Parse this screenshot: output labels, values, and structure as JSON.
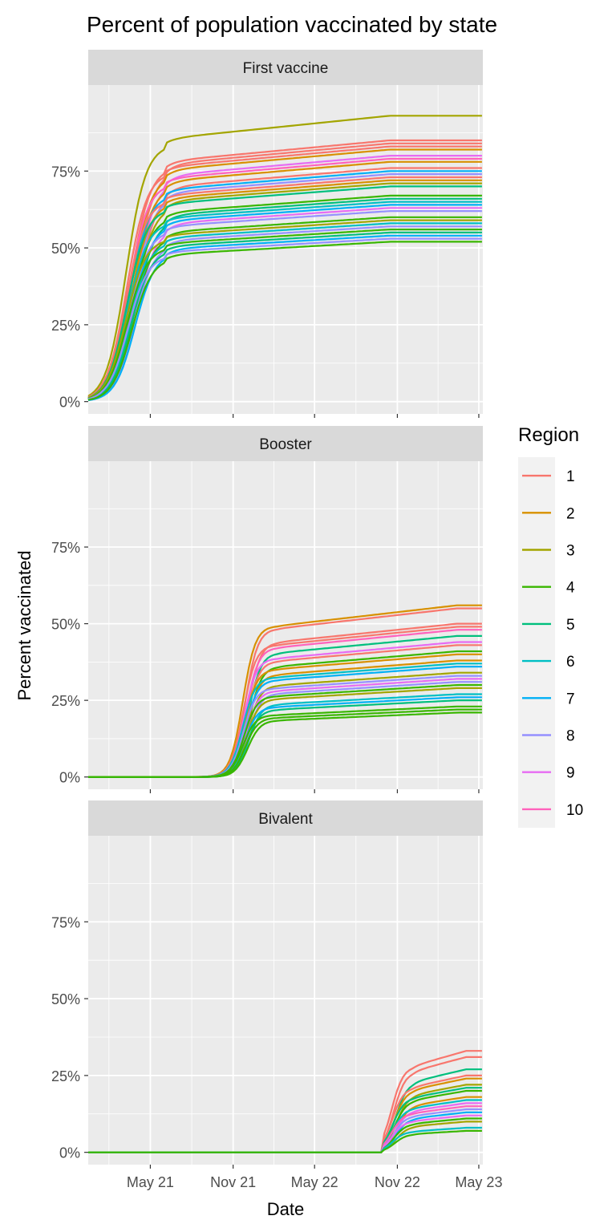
{
  "chart_data": {
    "type": "line",
    "title": "Percent of population vaccinated by state",
    "xlabel": "Date",
    "ylabel": "Percent vaccinated",
    "x_start": "2020-12-14",
    "x_end": "2023-05-10",
    "x_ticks": [
      {
        "date": "2021-05-01",
        "label": "May 21"
      },
      {
        "date": "2021-11-01",
        "label": "Nov 21"
      },
      {
        "date": "2022-05-01",
        "label": "May 22"
      },
      {
        "date": "2022-11-01",
        "label": "Nov 22"
      },
      {
        "date": "2023-05-01",
        "label": "May 23"
      }
    ],
    "y_ticks": [
      {
        "value": 0,
        "label": "0%"
      },
      {
        "value": 25,
        "label": "25%"
      },
      {
        "value": 50,
        "label": "50%"
      },
      {
        "value": 75,
        "label": "75%"
      }
    ],
    "ylim": [
      -4,
      103
    ],
    "grid": true,
    "legend": {
      "title": "Region",
      "placement": "right",
      "entries": [
        {
          "name": "1",
          "color": "#F8766D"
        },
        {
          "name": "2",
          "color": "#D89000"
        },
        {
          "name": "3",
          "color": "#A3A500"
        },
        {
          "name": "4",
          "color": "#39B600"
        },
        {
          "name": "5",
          "color": "#00BF7D"
        },
        {
          "name": "6",
          "color": "#00BFC4"
        },
        {
          "name": "7",
          "color": "#00B0F6"
        },
        {
          "name": "8",
          "color": "#9590FF"
        },
        {
          "name": "9",
          "color": "#E76BF3"
        },
        {
          "name": "10",
          "color": "#FF62BC"
        }
      ]
    },
    "panels": [
      {
        "name": "First vaccine",
        "series": [
          {
            "region": "3",
            "final": 93
          },
          {
            "region": "1",
            "final": 85
          },
          {
            "region": "1",
            "final": 84
          },
          {
            "region": "1",
            "final": 83
          },
          {
            "region": "2",
            "final": 82
          },
          {
            "region": "9",
            "final": 80
          },
          {
            "region": "10",
            "final": 79
          },
          {
            "region": "2",
            "final": 78
          },
          {
            "region": "1",
            "final": 76
          },
          {
            "region": "7",
            "final": 75
          },
          {
            "region": "8",
            "final": 74
          },
          {
            "region": "1",
            "final": 73
          },
          {
            "region": "2",
            "final": 72
          },
          {
            "region": "3",
            "final": 71
          },
          {
            "region": "5",
            "final": 70
          },
          {
            "region": "4",
            "final": 67
          },
          {
            "region": "5",
            "final": 66
          },
          {
            "region": "6",
            "final": 65
          },
          {
            "region": "7",
            "final": 64
          },
          {
            "region": "9",
            "final": 63
          },
          {
            "region": "8",
            "final": 62
          },
          {
            "region": "4",
            "final": 60
          },
          {
            "region": "3",
            "final": 59
          },
          {
            "region": "6",
            "final": 58
          },
          {
            "region": "8",
            "final": 57
          },
          {
            "region": "4",
            "final": 56
          },
          {
            "region": "5",
            "final": 55
          },
          {
            "region": "7",
            "final": 54
          },
          {
            "region": "8",
            "final": 53
          },
          {
            "region": "4",
            "final": 52
          }
        ]
      },
      {
        "name": "Booster",
        "series": [
          {
            "region": "2",
            "final": 56
          },
          {
            "region": "1",
            "final": 55
          },
          {
            "region": "1",
            "final": 50
          },
          {
            "region": "1",
            "final": 49
          },
          {
            "region": "10",
            "final": 48
          },
          {
            "region": "5",
            "final": 46
          },
          {
            "region": "9",
            "final": 44
          },
          {
            "region": "1",
            "final": 43
          },
          {
            "region": "4",
            "final": 41
          },
          {
            "region": "2",
            "final": 40
          },
          {
            "region": "2",
            "final": 38
          },
          {
            "region": "6",
            "final": 37
          },
          {
            "region": "7",
            "final": 36
          },
          {
            "region": "3",
            "final": 34
          },
          {
            "region": "8",
            "final": 33
          },
          {
            "region": "9",
            "final": 32
          },
          {
            "region": "8",
            "final": 31
          },
          {
            "region": "4",
            "final": 30
          },
          {
            "region": "3",
            "final": 29
          },
          {
            "region": "6",
            "final": 27
          },
          {
            "region": "7",
            "final": 26
          },
          {
            "region": "5",
            "final": 25
          },
          {
            "region": "4",
            "final": 23
          },
          {
            "region": "4",
            "final": 22
          },
          {
            "region": "4",
            "final": 21
          }
        ]
      },
      {
        "name": "Bivalent",
        "series": [
          {
            "region": "1",
            "final": 33
          },
          {
            "region": "1",
            "final": 31
          },
          {
            "region": "5",
            "final": 27
          },
          {
            "region": "1",
            "final": 25
          },
          {
            "region": "2",
            "final": 24
          },
          {
            "region": "3",
            "final": 22
          },
          {
            "region": "5",
            "final": 21
          },
          {
            "region": "4",
            "final": 20
          },
          {
            "region": "2",
            "final": 18
          },
          {
            "region": "6",
            "final": 17
          },
          {
            "region": "9",
            "final": 16
          },
          {
            "region": "10",
            "final": 15
          },
          {
            "region": "8",
            "final": 14
          },
          {
            "region": "7",
            "final": 13
          },
          {
            "region": "9",
            "final": 12
          },
          {
            "region": "4",
            "final": 11
          },
          {
            "region": "3",
            "final": 10
          },
          {
            "region": "6",
            "final": 8
          },
          {
            "region": "4",
            "final": 7
          }
        ]
      }
    ]
  }
}
